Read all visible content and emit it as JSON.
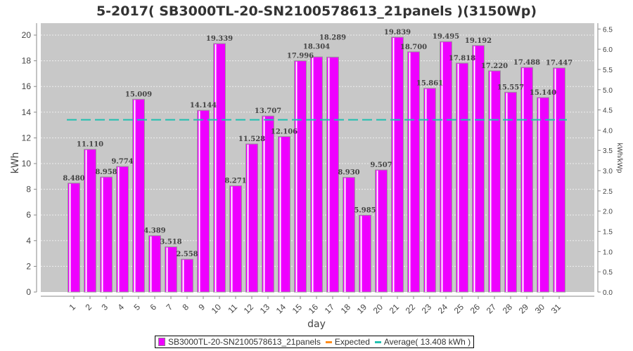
{
  "chart_data": {
    "type": "bar",
    "title": "5-2017( SB3000TL-20-SN2100578613_21panels )(3150Wp)",
    "xlabel": "day",
    "ylabel": "kWh",
    "y2label": "kWh/kWp",
    "ylim": [
      0,
      20.93
    ],
    "yticks": [
      0,
      2,
      4,
      6,
      8,
      10,
      12,
      14,
      16,
      18,
      20
    ],
    "y2ticks": [
      "0.0",
      "0.5",
      "1.0",
      "1.5",
      "2.0",
      "2.5",
      "3.0",
      "3.5",
      "4.0",
      "4.5",
      "5.0",
      "5.5",
      "6.0",
      "6.5"
    ],
    "kwp": 3.15,
    "categories": [
      "1",
      "2",
      "3",
      "4",
      "5",
      "6",
      "7",
      "8",
      "9",
      "10",
      "11",
      "12",
      "13",
      "14",
      "15",
      "16",
      "17",
      "18",
      "19",
      "20",
      "21",
      "22",
      "23",
      "24",
      "25",
      "26",
      "27",
      "28",
      "29",
      "30",
      "31"
    ],
    "series": [
      {
        "name": "SB3000TL-20-SN2100578613_21panels",
        "color": "#ee00ff",
        "values": [
          8.48,
          11.11,
          8.958,
          9.774,
          15.009,
          4.389,
          3.518,
          2.558,
          14.144,
          19.339,
          8.271,
          11.528,
          13.707,
          12.106,
          17.996,
          18.304,
          18.289,
          8.93,
          5.985,
          9.507,
          19.839,
          18.7,
          15.861,
          19.495,
          17.818,
          19.192,
          17.22,
          15.557,
          17.488,
          15.14,
          17.447
        ]
      }
    ],
    "average": 13.408,
    "average_color": "#22c0b0",
    "expected_color": "#ff8c1a",
    "grid": true,
    "legend_position": "bottom"
  },
  "legend": {
    "series": "SB3000TL-20-SN2100578613_21panels",
    "expected": "Expected",
    "average": "Average( 13.408 kWh )"
  }
}
